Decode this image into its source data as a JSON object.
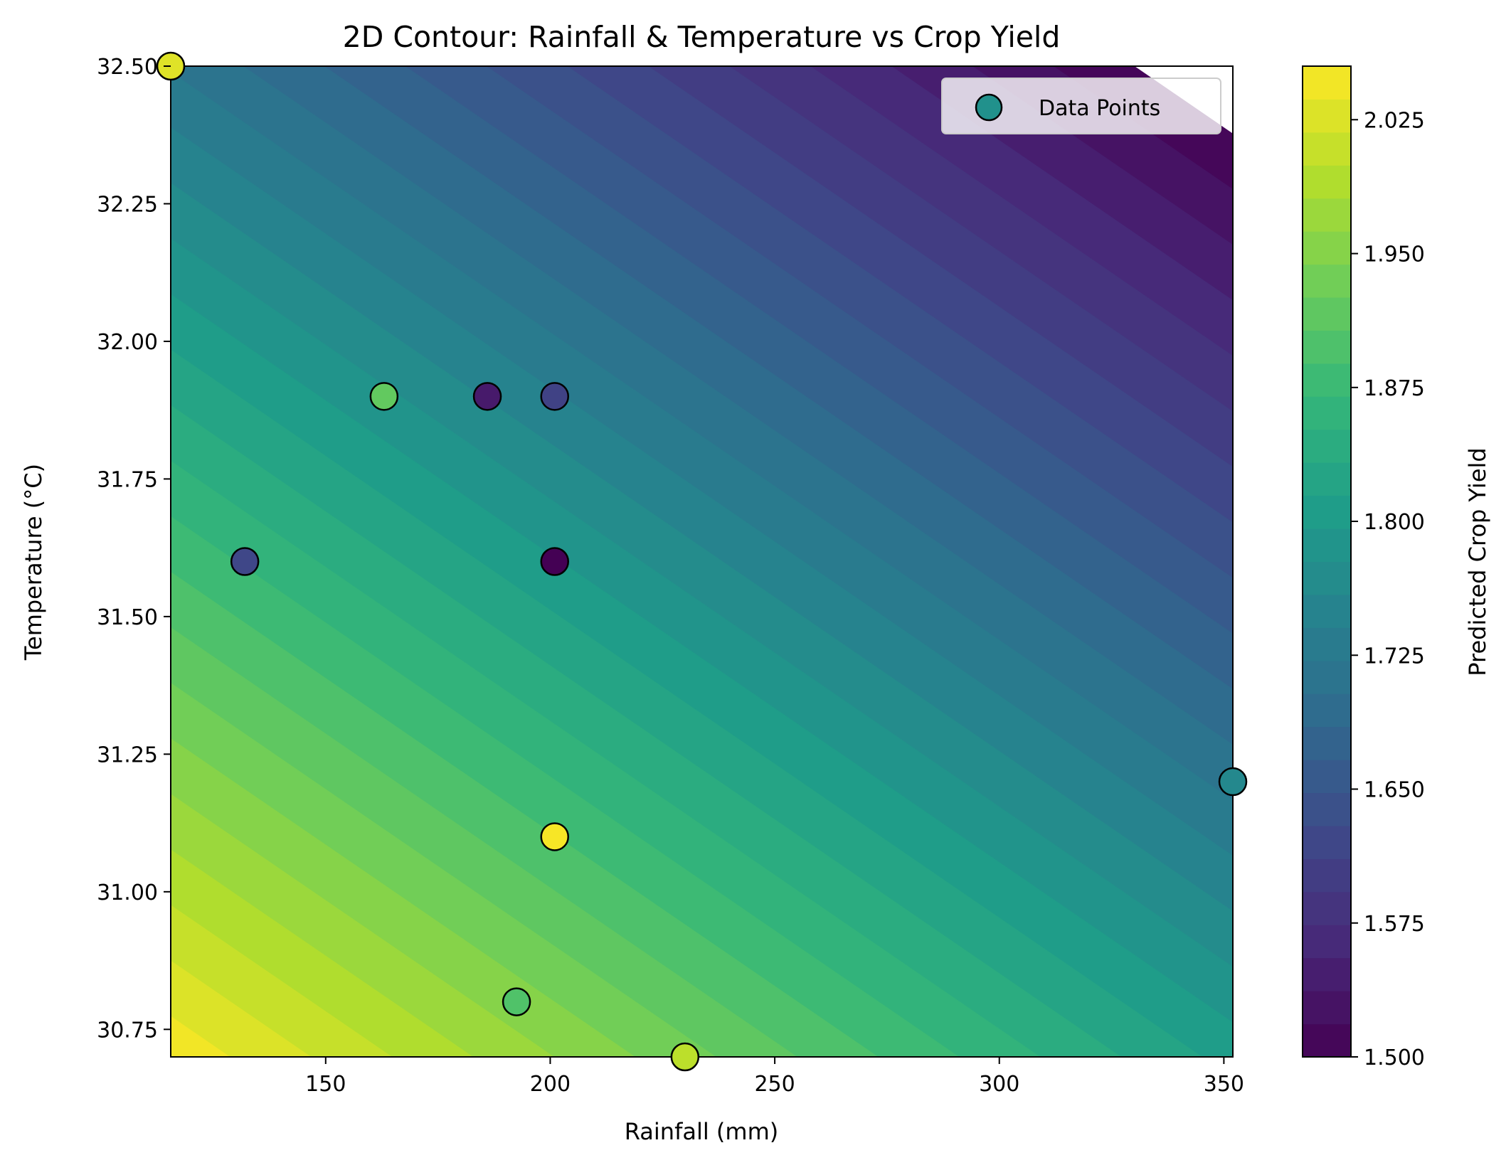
{
  "chart_data": {
    "type": "heatmap",
    "subtype": "filled-contour-with-scatter",
    "title": "2D Contour: Rainfall & Temperature vs Crop Yield",
    "xlabel": "Rainfall (mm)",
    "ylabel": "Temperature (°C)",
    "colorbar_label": "Predicted Crop Yield",
    "colormap": "viridis",
    "xlim": [
      115.5,
      352
    ],
    "ylim": [
      30.7,
      32.5
    ],
    "x_ticks": [
      150,
      200,
      250,
      300,
      350
    ],
    "x_tick_labels": [
      "150",
      "200",
      "250",
      "300",
      "350"
    ],
    "y_ticks": [
      30.75,
      31.0,
      31.25,
      31.5,
      31.75,
      32.0,
      32.25,
      32.5
    ],
    "y_tick_labels": [
      "30.75",
      "31.00",
      "31.25",
      "31.50",
      "31.75",
      "32.00",
      "32.25",
      "32.50"
    ],
    "colorbar_range": [
      1.5,
      2.055
    ],
    "colorbar_ticks": [
      1.5,
      1.575,
      1.65,
      1.725,
      1.8,
      1.875,
      1.95,
      2.025
    ],
    "colorbar_tick_labels": [
      "1.500",
      "1.575",
      "1.650",
      "1.725",
      "1.800",
      "1.875",
      "1.950",
      "2.025"
    ],
    "contour_levels": 30,
    "surface_model": {
      "intercept": 2.05,
      "x_coef": -0.0010255,
      "y_coef": -0.18333,
      "x_ref": 115.5,
      "y_ref": 30.7
    },
    "legend": {
      "label": "Data Points",
      "position": "upper right"
    },
    "marker_edge_color": "#000000",
    "points": [
      {
        "x": 115.5,
        "y": 32.5,
        "value": 2.03
      },
      {
        "x": 163,
        "y": 31.9,
        "value": 1.92
      },
      {
        "x": 186,
        "y": 31.9,
        "value": 1.54
      },
      {
        "x": 201,
        "y": 31.9,
        "value": 1.61
      },
      {
        "x": 132,
        "y": 31.6,
        "value": 1.62
      },
      {
        "x": 201,
        "y": 31.6,
        "value": 1.5
      },
      {
        "x": 352,
        "y": 31.2,
        "value": 1.76
      },
      {
        "x": 201,
        "y": 31.1,
        "value": 2.05
      },
      {
        "x": 192.5,
        "y": 30.8,
        "value": 1.9
      },
      {
        "x": 230,
        "y": 30.7,
        "value": 2.0
      }
    ]
  }
}
